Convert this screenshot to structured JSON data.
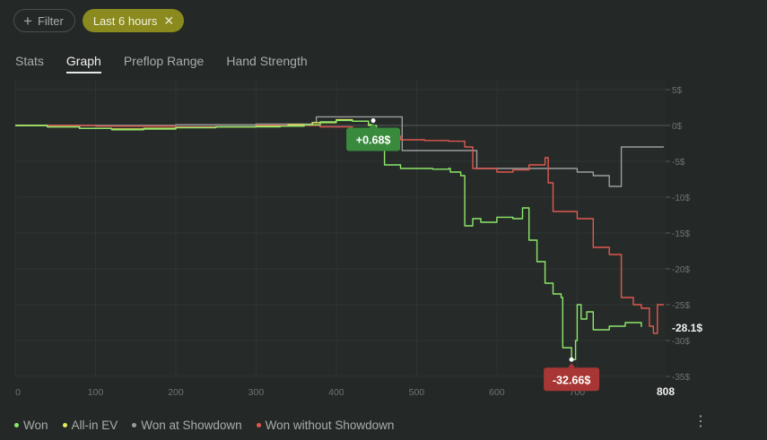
{
  "toolbar": {
    "filter_label": "Filter",
    "chip_label": "Last 6 hours"
  },
  "tabs": [
    {
      "label": "Stats",
      "active": false
    },
    {
      "label": "Graph",
      "active": true
    },
    {
      "label": "Preflop Range",
      "active": false
    },
    {
      "label": "Hand Strength",
      "active": false
    }
  ],
  "colors": {
    "won": "#8de86a",
    "allin_ev": "#e7e85a",
    "showdown": "#9a9d9b",
    "no_showdown": "#e0574f",
    "positive_badge": "#3a8a3e",
    "negative_badge": "#a83634"
  },
  "chart_data": {
    "type": "line",
    "xlabel": "",
    "ylabel": "",
    "xlim": [
      0,
      808
    ],
    "ylim": [
      -35,
      5
    ],
    "x_ticks": [
      "0",
      "100",
      "200",
      "300",
      "400",
      "500",
      "600",
      "700"
    ],
    "x_end_label": "808",
    "y_ticks": [
      "5$",
      "0$",
      "-5$",
      "-10$",
      "-15$",
      "-20$",
      "-25$",
      "-30$",
      "-35$"
    ],
    "series": [
      {
        "name": "Won",
        "color": "#8de86a",
        "points": [
          [
            0,
            0
          ],
          [
            40,
            -0.2
          ],
          [
            80,
            -0.4
          ],
          [
            120,
            -0.6
          ],
          [
            160,
            -0.5
          ],
          [
            200,
            -0.3
          ],
          [
            250,
            -0.2
          ],
          [
            300,
            -0.2
          ],
          [
            330,
            -0.1
          ],
          [
            360,
            0.1
          ],
          [
            380,
            0.5
          ],
          [
            400,
            0.7
          ],
          [
            420,
            0.6
          ],
          [
            440,
            0.0
          ],
          [
            450,
            -3
          ],
          [
            460,
            -5.5
          ],
          [
            480,
            -6
          ],
          [
            520,
            -6.1
          ],
          [
            540,
            -6.0
          ],
          [
            542,
            -6.5
          ],
          [
            555,
            -7
          ],
          [
            560,
            -14
          ],
          [
            570,
            -13
          ],
          [
            580,
            -13.5
          ],
          [
            600,
            -12.8
          ],
          [
            620,
            -13
          ],
          [
            632,
            -11.5
          ],
          [
            640,
            -16
          ],
          [
            650,
            -19
          ],
          [
            660,
            -22
          ],
          [
            670,
            -23.5
          ],
          [
            680,
            -24
          ],
          [
            682,
            -31
          ],
          [
            693,
            -32.66
          ],
          [
            698,
            -30
          ],
          [
            700,
            -25
          ],
          [
            705,
            -27
          ],
          [
            712,
            -26
          ],
          [
            720,
            -28.5
          ],
          [
            740,
            -28
          ],
          [
            760,
            -27.5
          ],
          [
            780,
            -28.1
          ]
        ]
      },
      {
        "name": "All-in EV",
        "color": "#e7e85a",
        "points": [
          [
            0,
            0
          ],
          [
            40,
            -0.2
          ],
          [
            80,
            -0.4
          ],
          [
            120,
            -0.5
          ],
          [
            160,
            -0.4
          ],
          [
            200,
            -0.3
          ],
          [
            250,
            -0.2
          ],
          [
            300,
            -0.1
          ],
          [
            340,
            0.1
          ],
          [
            370,
            0.4
          ],
          [
            400,
            0.8
          ],
          [
            420,
            0.6
          ],
          [
            440,
            0.1
          ],
          [
            445,
            -0.5
          ]
        ]
      },
      {
        "name": "Won at Showdown",
        "color": "#9a9d9b",
        "points": [
          [
            0,
            0
          ],
          [
            100,
            0
          ],
          [
            200,
            0.1
          ],
          [
            280,
            0.1
          ],
          [
            300,
            0.2
          ],
          [
            370,
            0.4
          ],
          [
            375,
            1.2
          ],
          [
            440,
            1.2
          ],
          [
            480,
            1.2
          ],
          [
            482,
            -3.5
          ],
          [
            560,
            -3.5
          ],
          [
            575,
            -6
          ],
          [
            640,
            -6
          ],
          [
            700,
            -6.5
          ],
          [
            720,
            -7
          ],
          [
            740,
            -8.5
          ],
          [
            755,
            -3
          ],
          [
            780,
            -3
          ],
          [
            808,
            -3
          ]
        ]
      },
      {
        "name": "Won without Showdown",
        "color": "#e0574f",
        "points": [
          [
            0,
            0
          ],
          [
            100,
            -0.1
          ],
          [
            200,
            -0.2
          ],
          [
            300,
            0
          ],
          [
            380,
            -0.2
          ],
          [
            420,
            -0.5
          ],
          [
            440,
            -0.6
          ],
          [
            450,
            -1.5
          ],
          [
            480,
            -2
          ],
          [
            510,
            -2.1
          ],
          [
            540,
            -2.2
          ],
          [
            560,
            -3
          ],
          [
            570,
            -6
          ],
          [
            600,
            -6.5
          ],
          [
            620,
            -6.2
          ],
          [
            640,
            -5.5
          ],
          [
            660,
            -4.5
          ],
          [
            664,
            -8
          ],
          [
            670,
            -12
          ],
          [
            700,
            -13
          ],
          [
            720,
            -17
          ],
          [
            740,
            -18
          ],
          [
            755,
            -24
          ],
          [
            770,
            -25
          ],
          [
            780,
            -25.5
          ],
          [
            790,
            -28
          ],
          [
            795,
            -29
          ],
          [
            800,
            -25
          ],
          [
            808,
            -25
          ]
        ]
      }
    ],
    "badges": {
      "positive": "+0.68$",
      "negative": "-32.66$",
      "end_value": "-28.1$"
    },
    "badge_points": {
      "positive": [
        446,
        0.68
      ],
      "negative": [
        693,
        -32.66
      ]
    }
  },
  "legend": [
    {
      "label": "Won",
      "color": "#8de86a"
    },
    {
      "label": "All-in EV",
      "color": "#e7e85a"
    },
    {
      "label": "Won at Showdown",
      "color": "#9a9d9b"
    },
    {
      "label": "Won without Showdown",
      "color": "#e0574f"
    }
  ]
}
